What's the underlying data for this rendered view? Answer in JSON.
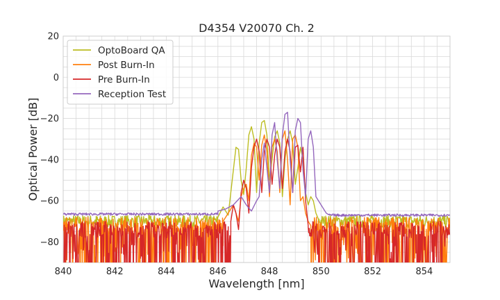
{
  "chart_data": {
    "type": "line",
    "title": "D4354 V20070 Ch. 2",
    "xlabel": "Wavelength [nm]",
    "ylabel": "Optical Power [dB]",
    "xlim": [
      840,
      855
    ],
    "ylim": [
      -90,
      20
    ],
    "xticks": [
      840,
      842,
      844,
      846,
      848,
      850,
      852,
      854
    ],
    "xtick_labels": [
      "840",
      "842",
      "844",
      "846",
      "848",
      "850",
      "852",
      "854"
    ],
    "yticks": [
      20,
      0,
      -20,
      -40,
      -60,
      -80
    ],
    "ytick_labels": [
      "20",
      "0",
      "−20",
      "−40",
      "−60",
      "−80"
    ],
    "grid": true,
    "legend_position": "top-left",
    "series": [
      {
        "name": "OptoBoard QA",
        "color": "#bcbd22",
        "noise": {
          "from": 840,
          "to": 846.0,
          "center": -70,
          "spread": 3,
          "dips": false
        },
        "noise2": {
          "from": 849.9,
          "to": 855,
          "center": -70,
          "spread": 3,
          "dips": false
        },
        "x": [
          846.0,
          846.2,
          846.4,
          846.6,
          846.7,
          846.8,
          846.9,
          847.0,
          847.1,
          847.2,
          847.3,
          847.4,
          847.5,
          847.6,
          847.7,
          847.8,
          847.9,
          848.0,
          848.1,
          848.2,
          848.3,
          848.4,
          848.5,
          848.6,
          848.7,
          848.8,
          848.9,
          849.0,
          849.1,
          849.2,
          849.3,
          849.4,
          849.5,
          849.6,
          849.7,
          849.8,
          849.9
        ],
        "y": [
          -68,
          -63,
          -67,
          -45,
          -34,
          -35,
          -50,
          -57,
          -44,
          -28,
          -24,
          -30,
          -56,
          -32,
          -22,
          -21,
          -28,
          -50,
          -40,
          -29,
          -26,
          -32,
          -58,
          -40,
          -30,
          -26,
          -32,
          -52,
          -44,
          -34,
          -40,
          -56,
          -62,
          -58,
          -60,
          -66,
          -69
        ]
      },
      {
        "name": "Post Burn-In",
        "color": "#ff7f0e",
        "noise": {
          "from": 840,
          "to": 846.2,
          "center": -72,
          "spread": 4,
          "dips": true
        },
        "noise2": {
          "from": 849.6,
          "to": 855,
          "center": -72,
          "spread": 4,
          "dips": true
        },
        "x": [
          846.2,
          846.4,
          846.6,
          846.8,
          846.9,
          847.0,
          847.1,
          847.2,
          847.3,
          847.4,
          847.5,
          847.6,
          847.7,
          847.8,
          847.9,
          848.0,
          848.1,
          848.2,
          848.3,
          848.4,
          848.5,
          848.6,
          848.7,
          848.8,
          848.9,
          849.0,
          849.1,
          849.2,
          849.3,
          849.4,
          849.5,
          849.6
        ],
        "y": [
          -70,
          -66,
          -62,
          -70,
          -58,
          -54,
          -52,
          -60,
          -38,
          -32,
          -34,
          -50,
          -33,
          -28,
          -36,
          -58,
          -34,
          -30,
          -36,
          -56,
          -30,
          -26,
          -40,
          -62,
          -30,
          -28,
          -34,
          -60,
          -58,
          -66,
          -70,
          -72
        ]
      },
      {
        "name": "Pre Burn-In",
        "color": "#d62728",
        "noise": {
          "from": 840,
          "to": 846.5,
          "center": -74,
          "spread": 4,
          "dips": true
        },
        "noise2": {
          "from": 849.5,
          "to": 855,
          "center": -74,
          "spread": 4,
          "dips": true
        },
        "x": [
          846.5,
          846.6,
          846.7,
          846.8,
          846.9,
          847.0,
          847.1,
          847.2,
          847.3,
          847.4,
          847.5,
          847.6,
          847.7,
          847.8,
          847.9,
          848.0,
          848.1,
          848.2,
          848.3,
          848.4,
          848.5,
          848.6,
          848.7,
          848.8,
          848.9,
          849.0,
          849.1,
          849.2,
          849.3,
          849.4,
          849.5
        ],
        "y": [
          -70,
          -62,
          -66,
          -74,
          -56,
          -50,
          -54,
          -66,
          -44,
          -34,
          -30,
          -36,
          -56,
          -36,
          -30,
          -34,
          -52,
          -38,
          -30,
          -34,
          -54,
          -36,
          -30,
          -36,
          -56,
          -34,
          -33,
          -46,
          -34,
          -60,
          -72
        ]
      },
      {
        "name": "Reception Test",
        "color": "#9467bd",
        "noise": {
          "from": 840,
          "to": 846.0,
          "center": -66.5,
          "spread": 0.6,
          "dips": false
        },
        "noise2": {
          "from": 850.3,
          "to": 855,
          "center": -67.0,
          "spread": 0.6,
          "dips": false
        },
        "x": [
          846.0,
          846.3,
          846.6,
          846.9,
          847.1,
          847.3,
          847.5,
          847.6,
          847.7,
          847.8,
          847.9,
          848.0,
          848.1,
          848.2,
          848.3,
          848.4,
          848.5,
          848.6,
          848.7,
          848.8,
          848.9,
          849.0,
          849.1,
          849.2,
          849.3,
          849.4,
          849.5,
          849.6,
          849.7,
          849.8,
          849.9,
          850.0,
          850.1,
          850.2,
          850.3
        ],
        "y": [
          -65,
          -64,
          -62,
          -58,
          -62,
          -65,
          -60,
          -58,
          -40,
          -32,
          -44,
          -56,
          -28,
          -22,
          -40,
          -54,
          -28,
          -18,
          -17,
          -40,
          -56,
          -26,
          -20,
          -22,
          -45,
          -58,
          -30,
          -26,
          -34,
          -58,
          -60,
          -62,
          -64,
          -66,
          -66.8
        ]
      }
    ]
  }
}
